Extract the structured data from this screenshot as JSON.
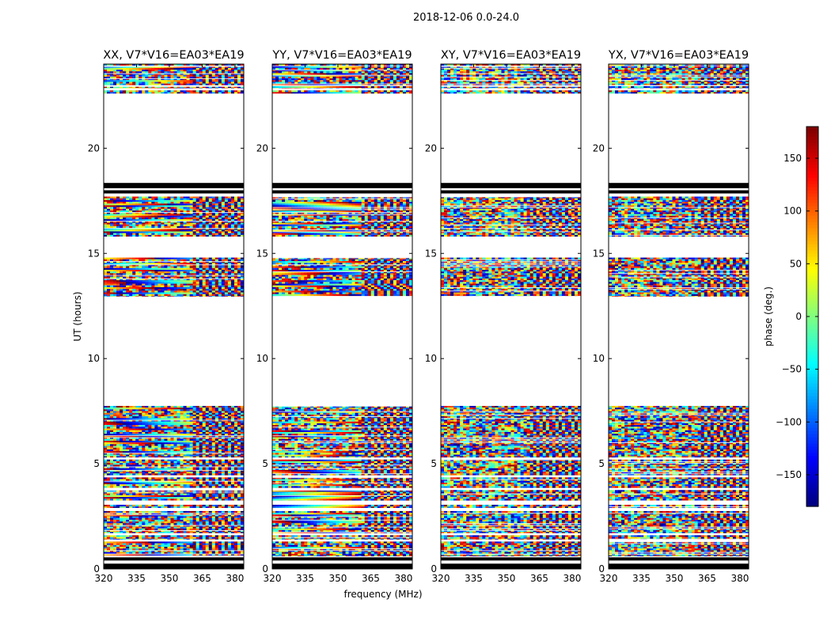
{
  "figure": {
    "suptitle": "2018-12-06 0.0-24.0",
    "xlabel": "frequency (MHz)",
    "ylabel": "UT (hours)"
  },
  "chart_data": {
    "type": "heatmap",
    "title": "2018-12-06 0.0-24.0",
    "xlabel": "frequency (MHz)",
    "ylabel": "UT (hours)",
    "xlim": [
      320,
      384
    ],
    "ylim": [
      0,
      24
    ],
    "x_ticks": [
      320,
      335,
      350,
      365,
      380
    ],
    "y_ticks": [
      0,
      5,
      10,
      15,
      20
    ],
    "colormap": "jet",
    "colorbar": {
      "label": "phase (deg.)",
      "range": [
        -180,
        180
      ],
      "ticks": [
        -150,
        -100,
        -50,
        0,
        50,
        100,
        150
      ],
      "tick_labels": [
        "−150",
        "−100",
        "−50",
        "0",
        "50",
        "100",
        "150"
      ]
    },
    "panels": [
      {
        "title": "XX, V7*V16=EA03*EA19",
        "polarization": "XX"
      },
      {
        "title": "YY, V7*V16=EA03*EA19",
        "polarization": "YY"
      },
      {
        "title": "XY, V7*V16=EA03*EA19",
        "polarization": "XY"
      },
      {
        "title": "YX, V7*V16=EA03*EA19",
        "polarization": "YX"
      }
    ],
    "data_blocks_ut_hours": [
      [
        0.0,
        0.25,
        "flagged-dark"
      ],
      [
        0.4,
        0.55,
        "flagged-dark"
      ],
      [
        0.6,
        1.3,
        "data"
      ],
      [
        1.4,
        1.6,
        "data"
      ],
      [
        1.7,
        2.75,
        "data"
      ],
      [
        2.9,
        3.05,
        "data"
      ],
      [
        3.25,
        3.75,
        "data"
      ],
      [
        3.85,
        4.35,
        "data"
      ],
      [
        4.45,
        5.2,
        "data"
      ],
      [
        5.3,
        7.75,
        "data"
      ],
      [
        12.95,
        14.8,
        "data"
      ],
      [
        15.8,
        17.7,
        "data"
      ],
      [
        17.85,
        18.0,
        "flagged-dark"
      ],
      [
        18.1,
        18.35,
        "flagged-dark"
      ],
      [
        22.6,
        22.75,
        "data"
      ],
      [
        22.85,
        22.95,
        "data"
      ],
      [
        23.0,
        23.9,
        "data"
      ],
      [
        23.93,
        24.0,
        "data"
      ]
    ],
    "grid": false
  }
}
